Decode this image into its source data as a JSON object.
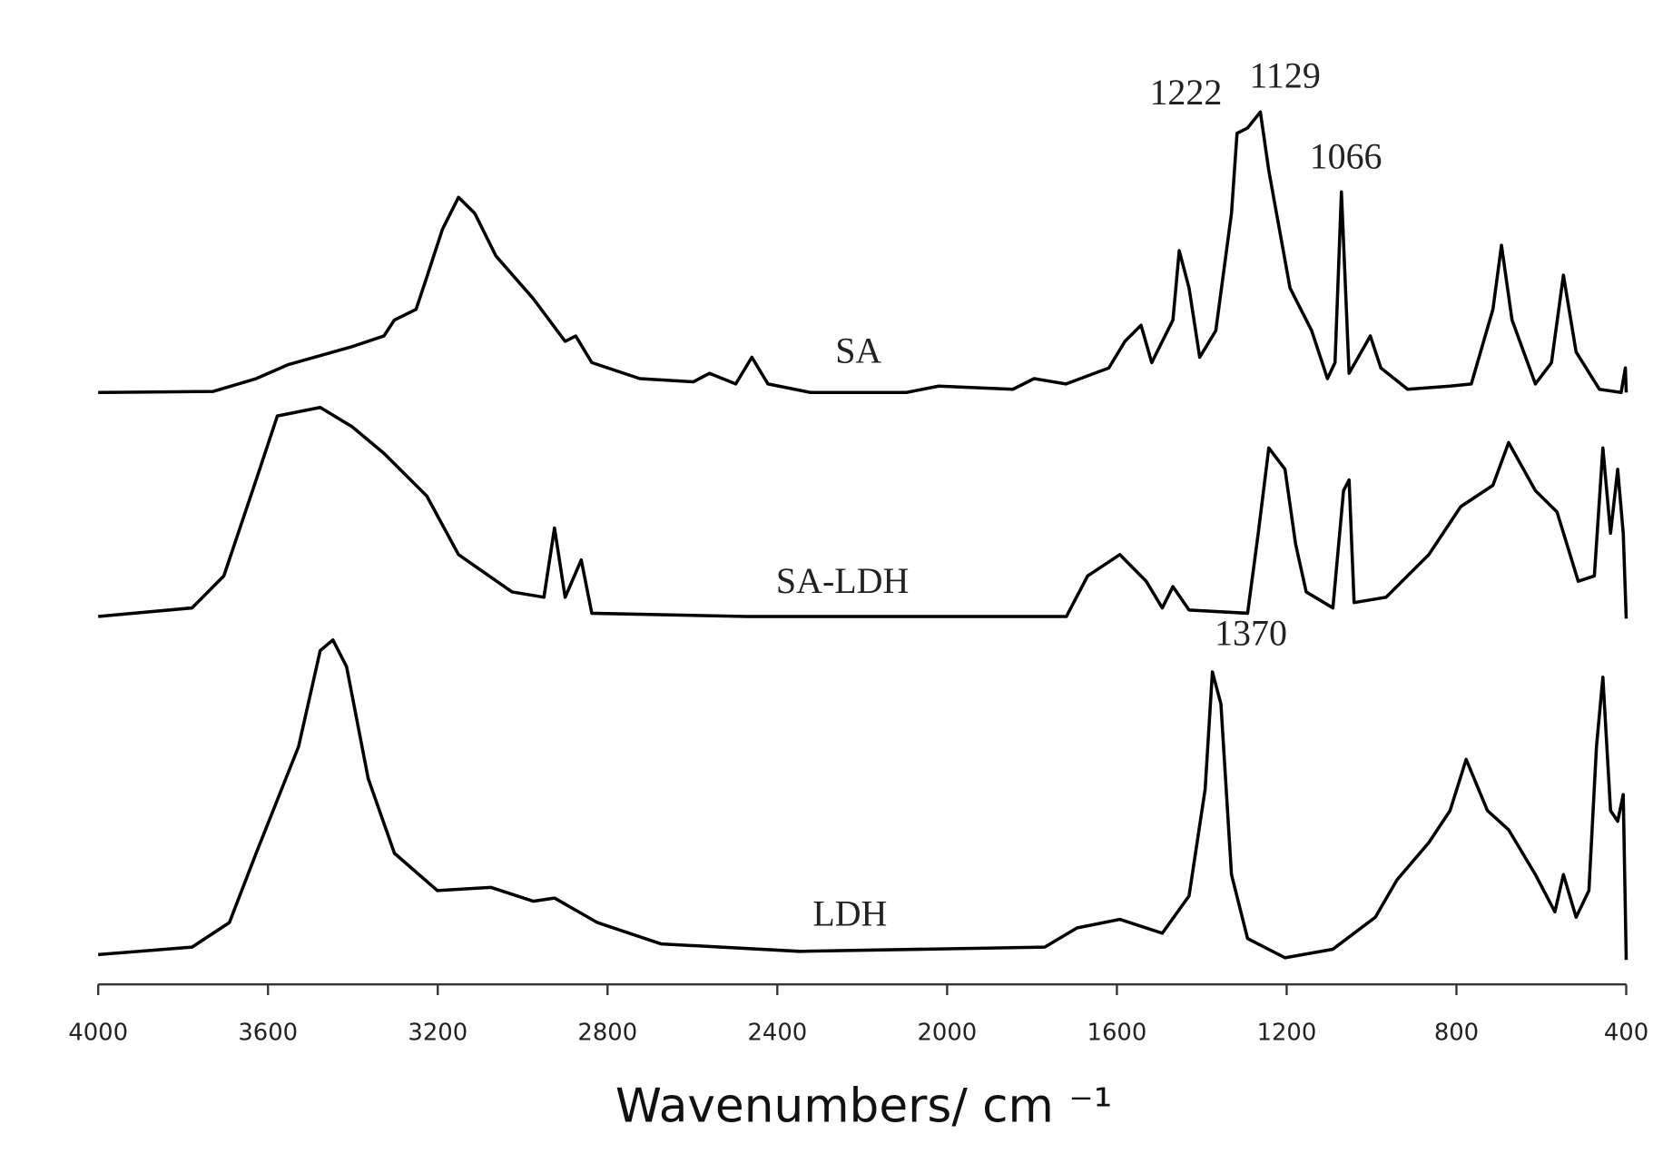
{
  "chart_data": {
    "type": "line",
    "x_label": "Wavenumbers/ cm ⁻¹",
    "xlim": [
      4000,
      400
    ],
    "xticks": [
      4000,
      3600,
      3200,
      2800,
      2400,
      2000,
      1600,
      1200,
      800,
      400
    ],
    "ylim": [
      0,
      823
    ],
    "grid": false,
    "annotations": [
      "1222",
      "1129",
      "1066",
      "1370"
    ],
    "series": [
      {
        "name": "SA",
        "color": "#000000",
        "x": [
          4000,
          3729,
          3628,
          3553,
          3402,
          3327,
          3302,
          3251,
          3226,
          3189,
          3151,
          3113,
          3063,
          2975,
          2900,
          2875,
          2837,
          2724,
          2598,
          2560,
          2498,
          2460,
          2422,
          2322,
          2096,
          2020,
          1845,
          1795,
          1720,
          1619,
          1581,
          1543,
          1518,
          1468,
          1453,
          1430,
          1405,
          1367,
          1330,
          1317,
          1292,
          1262,
          1242,
          1192,
          1141,
          1104,
          1086,
          1071,
          1053,
          1003,
          978,
          915,
          815,
          765,
          714,
          694,
          669,
          614,
          576,
          548,
          518,
          463,
          412,
          402,
          400
        ],
        "values": [
          555,
          556,
          568,
          581,
          598,
          608,
          623,
          633,
          663,
          708,
          738,
          723,
          683,
          643,
          603,
          608,
          583,
          568,
          565,
          573,
          563,
          588,
          563,
          555,
          555,
          561,
          558,
          568,
          563,
          578,
          603,
          618,
          583,
          623,
          688,
          653,
          588,
          613,
          723,
          798,
          803,
          818,
          763,
          653,
          613,
          568,
          583,
          743,
          573,
          608,
          578,
          558,
          561,
          563,
          633,
          693,
          623,
          563,
          583,
          665,
          593,
          558,
          555,
          578,
          555
        ]
      },
      {
        "name": "SA-LDH",
        "color": "#000000",
        "x": [
          4000,
          3779,
          3704,
          3628,
          3578,
          3477,
          3402,
          3327,
          3226,
          3151,
          3025,
          2950,
          2925,
          2900,
          2862,
          2837,
          2473,
          1719,
          1669,
          1593,
          1531,
          1493,
          1468,
          1430,
          1292,
          1267,
          1242,
          1204,
          1179,
          1154,
          1091,
          1066,
          1053,
          1041,
          966,
          865,
          790,
          714,
          677,
          614,
          563,
          513,
          475,
          455,
          437,
          420,
          407,
          400
        ],
        "values": [
          345,
          353,
          383,
          473,
          533,
          541,
          523,
          498,
          458,
          403,
          368,
          363,
          428,
          363,
          398,
          348,
          345,
          345,
          383,
          403,
          378,
          353,
          373,
          351,
          348,
          423,
          503,
          483,
          413,
          368,
          353,
          463,
          473,
          358,
          363,
          403,
          448,
          468,
          508,
          463,
          443,
          378,
          383,
          503,
          423,
          483,
          423,
          343
        ]
      },
      {
        "name": "LDH",
        "color": "#000000",
        "x": [
          4000,
          3779,
          3691,
          3628,
          3578,
          3528,
          3477,
          3447,
          3415,
          3364,
          3302,
          3201,
          3075,
          2975,
          2925,
          2824,
          2674,
          2347,
          1770,
          1694,
          1593,
          1493,
          1430,
          1392,
          1375,
          1355,
          1330,
          1292,
          1204,
          1091,
          991,
          940,
          865,
          815,
          777,
          727,
          677,
          614,
          568,
          548,
          518,
          488,
          470,
          455,
          437,
          420,
          407,
          400
        ],
        "values": [
          28,
          35,
          58,
          123,
          173,
          223,
          313,
          323,
          298,
          193,
          123,
          88,
          91,
          78,
          81,
          58,
          38,
          31,
          35,
          53,
          61,
          48,
          83,
          183,
          293,
          263,
          103,
          43,
          25,
          33,
          63,
          98,
          133,
          163,
          211,
          163,
          145,
          103,
          68,
          103,
          63,
          88,
          223,
          288,
          163,
          153,
          178,
          23
        ]
      }
    ]
  }
}
